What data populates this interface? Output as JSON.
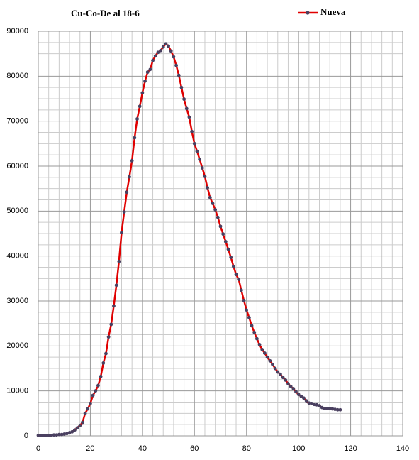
{
  "chart_data": {
    "type": "line",
    "title": "Cu-Co-De al 18-6",
    "x": [
      0,
      1,
      2,
      3,
      4,
      5,
      6,
      7,
      8,
      9,
      10,
      11,
      12,
      13,
      14,
      15,
      16,
      17,
      18,
      19,
      20,
      21,
      22,
      23,
      24,
      25,
      26,
      27,
      28,
      29,
      30,
      31,
      32,
      33,
      34,
      35,
      36,
      37,
      38,
      39,
      40,
      41,
      42,
      43,
      44,
      45,
      46,
      47,
      48,
      49,
      50,
      51,
      52,
      53,
      54,
      55,
      56,
      57,
      58,
      59,
      60,
      61,
      62,
      63,
      64,
      65,
      66,
      67,
      68,
      69,
      70,
      71,
      72,
      73,
      74,
      75,
      76,
      77,
      78,
      79,
      80,
      81,
      82,
      83,
      84,
      85,
      86,
      87,
      88,
      89,
      90,
      91,
      92,
      93,
      94,
      95,
      96,
      97,
      98,
      99,
      100,
      101,
      102,
      103,
      104,
      105,
      106,
      107,
      108,
      109,
      110,
      111,
      112,
      113,
      114,
      115,
      116
    ],
    "series": [
      {
        "name": "Nueva",
        "color": "#e00000",
        "marker_color": "#4a4060",
        "values": [
          100,
          100,
          100,
          100,
          100,
          100,
          200,
          200,
          300,
          300,
          400,
          500,
          700,
          900,
          1300,
          1800,
          2300,
          3000,
          5000,
          6000,
          7200,
          9000,
          10000,
          11200,
          13200,
          16200,
          18300,
          22000,
          24800,
          28900,
          33500,
          38800,
          45200,
          49800,
          54200,
          57600,
          61200,
          66300,
          70500,
          73300,
          76300,
          78900,
          80900,
          81500,
          83500,
          84500,
          85300,
          85700,
          86500,
          87200,
          86700,
          85600,
          84300,
          82400,
          80200,
          77500,
          74900,
          72800,
          70900,
          67700,
          65000,
          63300,
          61500,
          59600,
          57700,
          55200,
          53000,
          51700,
          50300,
          48600,
          46600,
          44900,
          43200,
          41500,
          39700,
          37700,
          35900,
          34800,
          32400,
          30100,
          28000,
          26300,
          24500,
          23000,
          21600,
          20300,
          19200,
          18400,
          17500,
          16700,
          15900,
          15000,
          14200,
          13700,
          13000,
          12400,
          11600,
          11000,
          10500,
          9800,
          9200,
          8800,
          8400,
          7800,
          7300,
          7200,
          7000,
          6900,
          6700,
          6300,
          6100,
          6100,
          6100,
          6000,
          5900,
          5800,
          5800
        ]
      }
    ],
    "xlim": [
      0,
      140
    ],
    "xticks": [
      0,
      20,
      40,
      60,
      80,
      100,
      120,
      140
    ],
    "ylim": [
      0,
      90000
    ],
    "yticks": [
      0,
      10000,
      20000,
      30000,
      40000,
      50000,
      60000,
      70000,
      80000,
      90000
    ],
    "grid": true,
    "legend": "top-right"
  }
}
